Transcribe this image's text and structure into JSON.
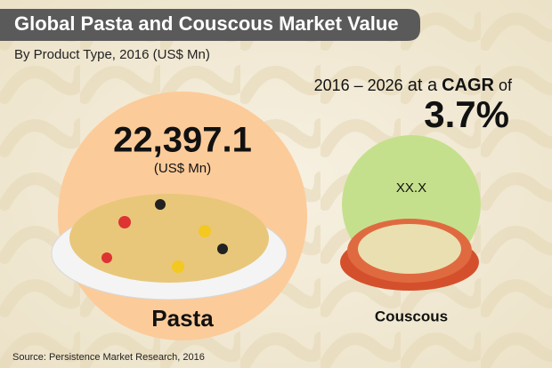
{
  "title": "Global Pasta and Couscous Market Value",
  "subtitle": "By Product Type, 2016 (US$ Mn)",
  "cagr": {
    "period": "2016 – 2026",
    "prefix": "at a",
    "label": "CAGR",
    "suffix": "of",
    "value": "3.7%"
  },
  "items": [
    {
      "name": "Pasta",
      "value": "22,397.1",
      "unit": "(US$ Mn)"
    },
    {
      "name": "Couscous",
      "value": "XX.X"
    }
  ],
  "source": "Source: Persistence Market Research, 2016"
}
